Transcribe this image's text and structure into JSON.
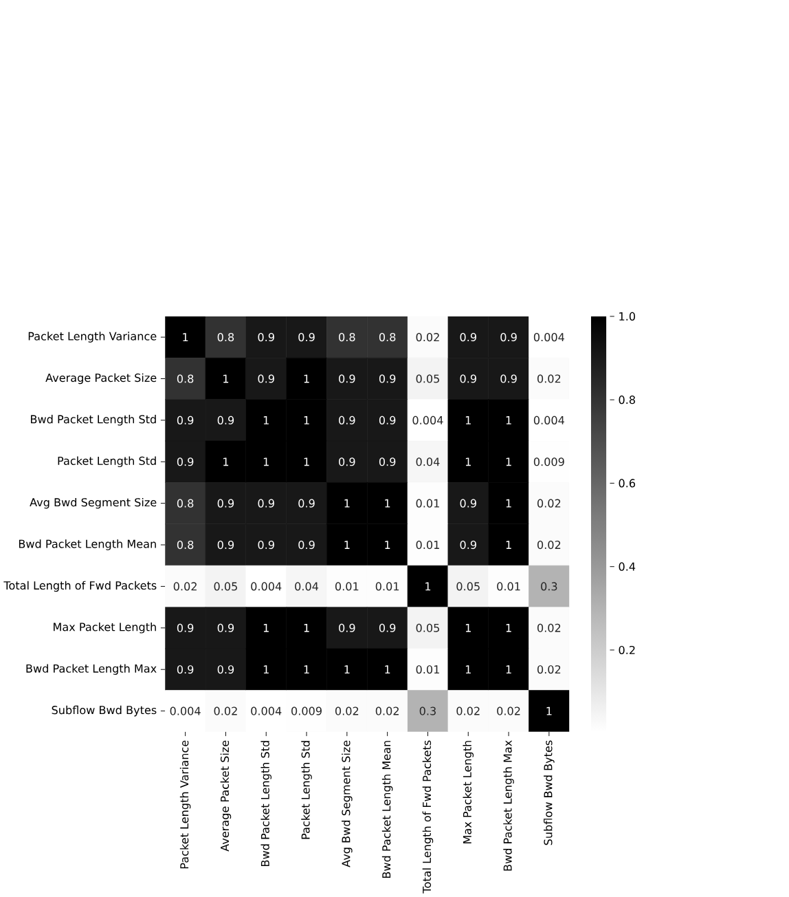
{
  "chart_data": {
    "type": "heatmap",
    "categories": [
      "Packet Length Variance",
      "Average Packet Size",
      "Bwd Packet Length Std",
      "Packet Length Std",
      "Avg Bwd Segment Size",
      "Bwd Packet Length Mean",
      "Total Length of Fwd Packets",
      "Max Packet Length",
      "Bwd Packet Length Max",
      "Subflow Bwd Bytes"
    ],
    "y_categories": [
      "Packet Length Variance",
      "Average Packet Size",
      "Bwd Packet Length Std",
      "Packet Length Std",
      "Avg Bwd Segment Size",
      "Bwd Packet Length Mean",
      "Total Length of Fwd Packets",
      "Max Packet Length",
      "Bwd Packet Length Max",
      "Subflow Bwd Bytes"
    ],
    "cells": [
      [
        1,
        0.8,
        0.9,
        0.9,
        0.8,
        0.8,
        0.02,
        0.9,
        0.9,
        0.004
      ],
      [
        0.8,
        1,
        0.9,
        1,
        0.9,
        0.9,
        0.05,
        0.9,
        0.9,
        0.02
      ],
      [
        0.9,
        0.9,
        1,
        1,
        0.9,
        0.9,
        0.004,
        1,
        1,
        0.004
      ],
      [
        0.9,
        1,
        1,
        1,
        0.9,
        0.9,
        0.04,
        1,
        1,
        0.009
      ],
      [
        0.8,
        0.9,
        0.9,
        0.9,
        1,
        1,
        0.01,
        0.9,
        1,
        0.02
      ],
      [
        0.8,
        0.9,
        0.9,
        0.9,
        1,
        1,
        0.01,
        0.9,
        1,
        0.02
      ],
      [
        0.02,
        0.05,
        0.004,
        0.04,
        0.01,
        0.01,
        1,
        0.05,
        0.01,
        0.3
      ],
      [
        0.9,
        0.9,
        1,
        1,
        0.9,
        0.9,
        0.05,
        1,
        1,
        0.02
      ],
      [
        0.9,
        0.9,
        1,
        1,
        1,
        1,
        0.01,
        1,
        1,
        0.02
      ],
      [
        0.004,
        0.02,
        0.004,
        0.009,
        0.02,
        0.02,
        0.3,
        0.02,
        0.02,
        1
      ]
    ],
    "clim": [
      0.004,
      1
    ],
    "cticks": [
      0.2,
      0.4,
      0.6,
      0.8,
      {
        "value": 1,
        "label": "1.0"
      }
    ],
    "data_labels": true
  }
}
